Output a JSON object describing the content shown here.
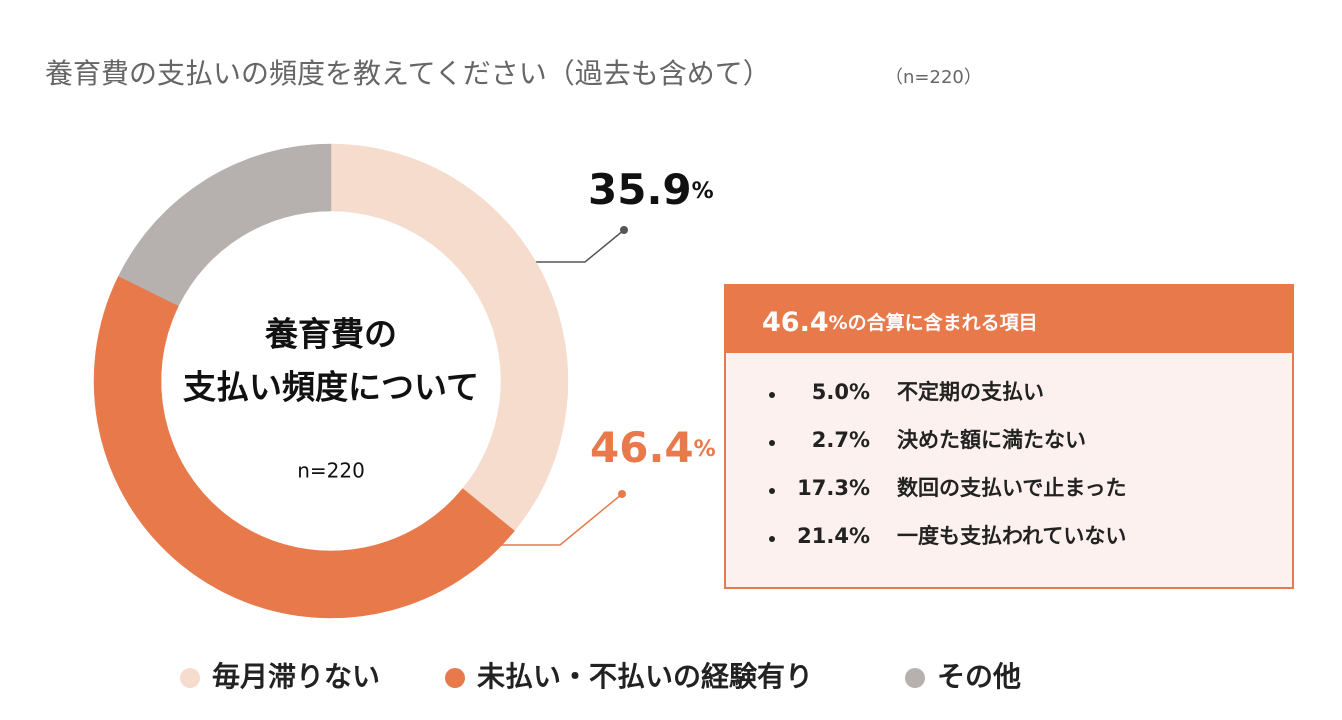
{
  "chart_data": {
    "type": "donut",
    "title": "養育費の支払いの頻度を教えてください（過去も含めて）",
    "subtitle": "（n=220）",
    "center_lines": [
      "養育費の",
      "支払い頻度について"
    ],
    "center_note": "n=220",
    "series": [
      {
        "name": "毎月滞りない",
        "color": "#f6dccd",
        "values": [
          35.9
        ]
      },
      {
        "name": "未払い・不払いの経験有り",
        "color": "#e8794b",
        "values": [
          5.0,
          2.7,
          17.3,
          21.4
        ],
        "value_labels": [
          "5.0%",
          "2.7%",
          "17.3%",
          "21.4%"
        ]
      },
      {
        "name": "その他",
        "color": "#b6b1af",
        "values": [
          17.7
        ]
      }
    ],
    "callouts": [
      {
        "value": 35.9,
        "unit": "%",
        "color": "#111111"
      },
      {
        "value": 46.4,
        "unit": "%",
        "color": "#e8794b"
      }
    ],
    "breakdown": {
      "title_suffix": "%の合算に含まれる項目",
      "items": [
        "不定期の支払い",
        "決めた額に満たない",
        "数回の支払いで止まった",
        "一度も支払われていない"
      ]
    }
  }
}
